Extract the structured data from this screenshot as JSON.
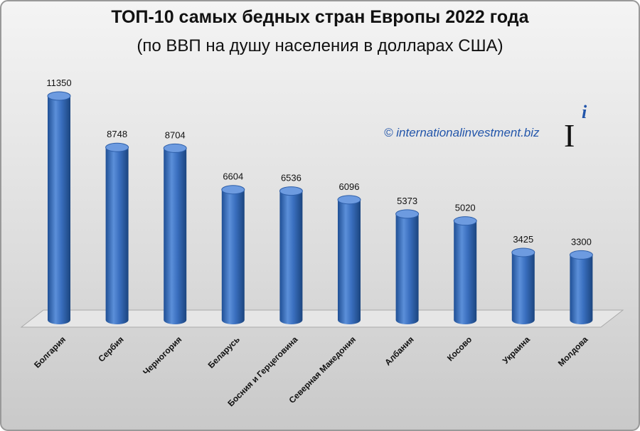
{
  "chart_data": {
    "type": "bar",
    "title": "ТОП-10 самых бедных стран Европы 2022 года",
    "subtitle": "(по ВВП на душу населения в долларах США)",
    "source": "© internationalinvestment.biz",
    "logo": {
      "main": "I",
      "sup": "i"
    },
    "categories": [
      "Болгария",
      "Сербия",
      "Черногория",
      "Беларусь",
      "Босния и Герцеговина",
      "Северная Македония",
      "Албания",
      "Косово",
      "Украина",
      "Молдова"
    ],
    "values": [
      11350,
      8748,
      8704,
      6604,
      6536,
      6096,
      5373,
      5020,
      3425,
      3300
    ],
    "color": "#3a6fbf"
  }
}
